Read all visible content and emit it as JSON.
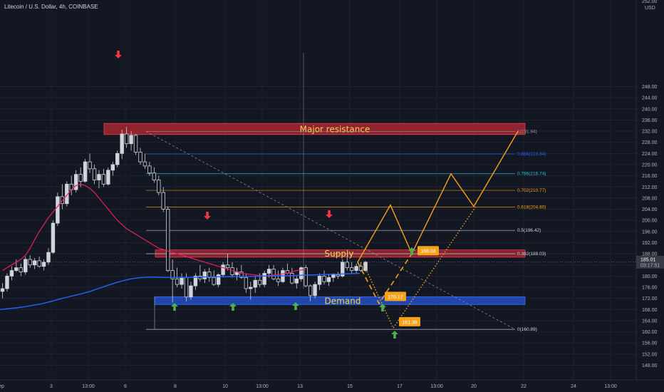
{
  "header": {
    "title": "Litecoin / U.S. Dollar, 4h, COINBASE"
  },
  "price_axis": {
    "currency": "USD",
    "top_cut_label": "252.00",
    "last_price": "185.01",
    "countdown": "03:17:51"
  },
  "chart_data": {
    "type": "candlestick",
    "title": "Litecoin / U.S. Dollar, 4h, COINBASE",
    "ylim": [
      145,
      253
    ],
    "y_ticks": [
      148,
      152,
      156,
      160,
      164,
      168,
      172,
      176,
      180,
      184,
      188,
      192,
      196,
      200,
      204,
      208,
      212,
      216,
      220,
      224,
      228,
      232,
      236,
      240,
      244,
      248
    ],
    "x_ticks": [
      "ep",
      "3",
      "13:00",
      "6",
      "8",
      "10",
      "13:00",
      "13",
      "15",
      "17",
      "13:00",
      "20",
      "22",
      "24",
      "13:00"
    ],
    "last_price": 185.01,
    "candles_ohlc": [
      [
        174.5,
        177.5,
        172.0,
        175.5
      ],
      [
        175.5,
        181.0,
        174.5,
        180.0
      ],
      [
        180.0,
        183.5,
        178.5,
        182.0
      ],
      [
        182.0,
        186.0,
        181.5,
        183.0
      ],
      [
        183.0,
        184.5,
        180.0,
        181.5
      ],
      [
        181.5,
        187.0,
        180.5,
        186.0
      ],
      [
        186.0,
        187.5,
        183.0,
        184.0
      ],
      [
        184.0,
        186.5,
        182.5,
        185.5
      ],
      [
        185.5,
        187.0,
        183.0,
        183.5
      ],
      [
        183.5,
        186.0,
        182.0,
        185.0
      ],
      [
        185.0,
        190.0,
        184.0,
        188.5
      ],
      [
        188.5,
        200.0,
        188.0,
        199.0
      ],
      [
        199.0,
        210.0,
        198.0,
        208.5
      ],
      [
        208.5,
        213.0,
        204.0,
        206.0
      ],
      [
        206.0,
        214.0,
        205.0,
        213.0
      ],
      [
        213.0,
        216.0,
        209.0,
        211.0
      ],
      [
        211.0,
        218.0,
        210.0,
        216.5
      ],
      [
        216.5,
        219.0,
        212.0,
        214.0
      ],
      [
        214.0,
        222.0,
        213.5,
        221.0
      ],
      [
        221.0,
        224.0,
        217.0,
        218.5
      ],
      [
        218.5,
        220.0,
        213.0,
        214.5
      ],
      [
        214.5,
        218.0,
        211.5,
        216.5
      ],
      [
        216.5,
        218.5,
        212.0,
        213.0
      ],
      [
        213.0,
        219.0,
        212.5,
        218.0
      ],
      [
        218.0,
        221.0,
        216.0,
        220.0
      ],
      [
        220.0,
        225.0,
        219.0,
        224.0
      ],
      [
        224.0,
        232.5,
        222.0,
        231.0
      ],
      [
        231.0,
        233.5,
        226.0,
        227.5
      ],
      [
        227.5,
        232.0,
        225.0,
        230.5
      ],
      [
        230.5,
        231.0,
        223.5,
        224.5
      ],
      [
        224.5,
        226.0,
        220.0,
        221.0
      ],
      [
        221.0,
        224.0,
        218.5,
        219.5
      ],
      [
        219.5,
        221.0,
        216.0,
        217.0
      ],
      [
        217.0,
        219.0,
        213.5,
        214.5
      ],
      [
        214.5,
        216.0,
        209.0,
        210.0
      ],
      [
        210.0,
        212.0,
        203.0,
        204.0
      ],
      [
        204.0,
        205.0,
        181.5,
        182.0
      ],
      [
        182.0,
        186.0,
        170.5,
        179.0
      ],
      [
        179.0,
        183.0,
        176.0,
        177.0
      ],
      [
        177.0,
        181.0,
        175.5,
        179.5
      ],
      [
        179.5,
        181.0,
        171.0,
        172.5
      ],
      [
        172.5,
        178.0,
        171.5,
        176.5
      ],
      [
        176.5,
        181.0,
        175.0,
        180.0
      ],
      [
        180.0,
        184.0,
        178.0,
        179.0
      ],
      [
        179.0,
        182.5,
        177.5,
        181.5
      ],
      [
        181.5,
        183.0,
        178.0,
        179.5
      ],
      [
        179.5,
        182.0,
        176.5,
        177.0
      ],
      [
        177.0,
        181.0,
        176.0,
        180.5
      ],
      [
        180.5,
        185.0,
        179.5,
        184.0
      ],
      [
        184.0,
        188.0,
        182.0,
        183.0
      ],
      [
        183.0,
        185.0,
        179.5,
        180.5
      ],
      [
        180.5,
        183.0,
        178.5,
        181.5
      ],
      [
        181.5,
        184.0,
        179.0,
        179.5
      ],
      [
        179.5,
        181.0,
        174.0,
        175.5
      ],
      [
        175.5,
        178.0,
        171.5,
        176.0
      ],
      [
        176.0,
        180.0,
        174.0,
        178.5
      ],
      [
        178.5,
        181.0,
        176.0,
        177.0
      ],
      [
        177.0,
        182.0,
        176.0,
        181.0
      ],
      [
        181.0,
        184.0,
        179.5,
        182.5
      ],
      [
        182.5,
        184.0,
        178.5,
        179.0
      ],
      [
        179.0,
        182.0,
        176.5,
        178.0
      ],
      [
        178.0,
        183.0,
        177.5,
        182.0
      ],
      [
        182.0,
        184.5,
        180.5,
        181.0
      ],
      [
        181.0,
        183.0,
        177.0,
        177.5
      ],
      [
        177.5,
        180.0,
        175.5,
        179.0
      ],
      [
        179.0,
        183.5,
        178.0,
        183.0
      ],
      [
        183.0,
        184.0,
        176.0,
        176.5
      ],
      [
        176.5,
        177.0,
        171.0,
        173.0
      ],
      [
        173.0,
        178.0,
        172.0,
        177.0
      ],
      [
        177.0,
        181.0,
        175.0,
        180.0
      ],
      [
        180.0,
        182.0,
        177.0,
        178.0
      ],
      [
        178.0,
        180.5,
        176.5,
        179.5
      ],
      [
        179.5,
        181.0,
        178.0,
        180.5
      ],
      [
        180.5,
        181.5,
        179.0,
        180.0
      ],
      [
        180.0,
        186.0,
        179.5,
        185.0
      ],
      [
        185.0,
        187.5,
        182.0,
        183.0
      ],
      [
        183.0,
        185.0,
        181.0,
        182.0
      ],
      [
        182.0,
        184.5,
        181.0,
        183.5
      ],
      [
        183.5,
        185.0,
        181.5,
        182.0
      ],
      [
        182.0,
        185.5,
        181.5,
        185.0
      ]
    ],
    "ema_red": [
      182,
      183,
      184,
      185,
      186,
      187.5,
      190,
      193,
      196,
      198.5,
      201,
      203,
      205,
      207,
      209,
      211,
      212.5,
      213,
      212.5,
      211.5,
      210,
      208,
      206,
      204,
      202,
      200,
      198.5,
      197,
      196,
      195,
      194,
      193,
      192,
      191,
      190,
      189.5,
      189,
      188.5,
      188,
      187.5,
      187,
      186.5,
      186,
      185.5,
      185,
      184.5,
      184,
      183.5,
      183,
      182.5,
      182,
      181.5,
      181,
      180.8,
      180.6,
      180.4,
      180.2,
      180,
      180.2,
      180.4,
      180.6,
      180.8,
      181,
      181.5,
      182,
      182.2,
      182.4
    ],
    "ema_blue": [
      168,
      168.3,
      168.6,
      169,
      169.5,
      170,
      170.7,
      171.5,
      172.3,
      173,
      173.7,
      174.5,
      175.5,
      176.5,
      177.5,
      178.3,
      179,
      179.4,
      179.6,
      179.6,
      179.5,
      179.5,
      179.5,
      179.5,
      179.6,
      179.7,
      179.7,
      179.8,
      179.8,
      179.8,
      179.9,
      179.9,
      180,
      180,
      180.1,
      180.1,
      180.2,
      180.3,
      180.4,
      180.5,
      180.6,
      180.7,
      180.8,
      180.9,
      181
    ],
    "zones": [
      {
        "name": "Major resistance",
        "low": 230.8,
        "high": 234.8,
        "label": "Major resistance"
      },
      {
        "name": "Supply",
        "low": 186.8,
        "high": 189.4,
        "label": "Supply"
      },
      {
        "name": "Demand",
        "low": 169.8,
        "high": 172.6,
        "label": "Demand"
      }
    ],
    "fib_levels": [
      {
        "label": "1(231.94)",
        "price": 231.94,
        "color": "#9598a1"
      },
      {
        "label": "0.886(223.84)",
        "price": 223.84,
        "color": "#2962ff"
      },
      {
        "label": "0.786(216.74)",
        "price": 216.74,
        "color": "#26c6da"
      },
      {
        "label": "0.702(210.77)",
        "price": 210.77,
        "color": "#f7a21b"
      },
      {
        "label": "0.618(204.80)",
        "price": 204.8,
        "color": "#f7a21b"
      },
      {
        "label": "0.5(196.42)",
        "price": 196.42,
        "color": "#d1d4dc"
      },
      {
        "label": "0.382(188.03)",
        "price": 188.03,
        "color": "#d1d4dc"
      },
      {
        "label": "0(160.89)",
        "price": 160.89,
        "color": "#d1d4dc"
      }
    ],
    "price_tags": [
      "188.04",
      "170.17",
      "161.38"
    ],
    "colors": {
      "background": "#131722",
      "candle": "#d1d4dc",
      "ema_red": "#e91e63",
      "ema_blue": "#2962ff",
      "arrow_up": "#4caf50",
      "arrow_down": "#f23645",
      "projection": "#f7a21b",
      "resistance_zone": "#b22833",
      "demand_zone": "#2962ff",
      "zone_text": "#f5d547"
    }
  }
}
